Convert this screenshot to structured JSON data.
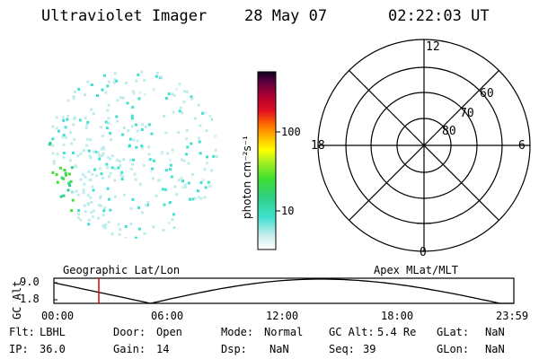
{
  "header": {
    "instrument": "Ultraviolet Imager",
    "date": "28 May 07",
    "time": "02:22:03 UT"
  },
  "colorbar": {
    "label": "photon cm⁻²s⁻¹",
    "ticks": [
      "100",
      "10"
    ]
  },
  "polar": {
    "mlt_labels": {
      "top": "12",
      "left": "18",
      "right": "6",
      "bottom": "0"
    },
    "lat_labels": [
      "60",
      "70",
      "80"
    ]
  },
  "timeline": {
    "left_title": "Geographic Lat/Lon",
    "right_title": "Apex MLat/MLT",
    "axis_label": "GC Alt",
    "y_max": "9.0",
    "y_min": "1.8",
    "x_ticks": [
      "00:00",
      "06:00",
      "12:00",
      "18:00",
      "23:59"
    ]
  },
  "status": {
    "flt_label": "Flt:",
    "flt_value": "LBHL",
    "ip_label": "IP:",
    "ip_value": "36.0",
    "door_label": "Door:",
    "door_value": "Open",
    "gain_label": "Gain:",
    "gain_value": "14",
    "mode_label": "Mode:",
    "mode_value": "Normal",
    "dsp_label": "Dsp:",
    "dsp_value": "NaN",
    "gcalt_label": "GC Alt:",
    "gcalt_value": "5.4 Re",
    "seq_label": "Seq:",
    "seq_value": "39",
    "glat_label": "GLat:",
    "glat_value": "NaN",
    "glon_label": "GLon:",
    "glon_value": "NaN"
  }
}
